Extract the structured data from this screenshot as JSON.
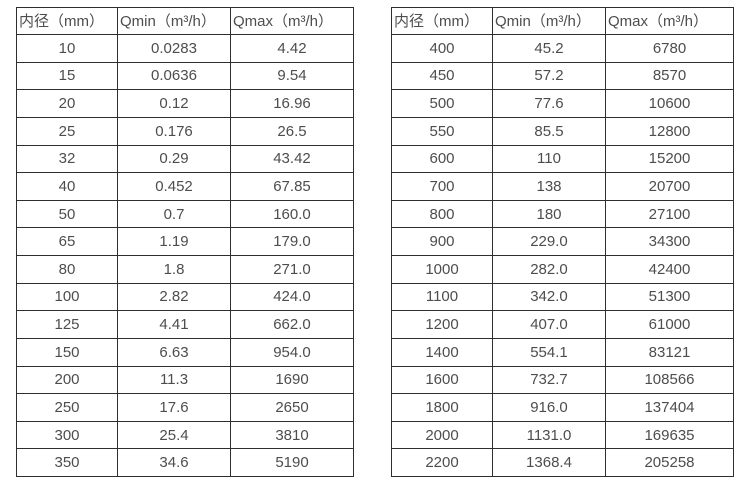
{
  "colors": {
    "background": "#ffffff",
    "border": "#2e2e2e",
    "text": "#4d4d4d"
  },
  "tables": [
    {
      "name": "flow-spec-table-small-diameters",
      "headers": [
        "内径（mm）",
        "Qmin（m³/h）",
        "Qmax（m³/h）"
      ],
      "rows": [
        [
          "10",
          "0.0283",
          "4.42"
        ],
        [
          "15",
          "0.0636",
          "9.54"
        ],
        [
          "20",
          "0.12",
          "16.96"
        ],
        [
          "25",
          "0.176",
          "26.5"
        ],
        [
          "32",
          "0.29",
          "43.42"
        ],
        [
          "40",
          "0.452",
          "67.85"
        ],
        [
          "50",
          "0.7",
          "160.0"
        ],
        [
          "65",
          "1.19",
          "179.0"
        ],
        [
          "80",
          "1.8",
          "271.0"
        ],
        [
          "100",
          "2.82",
          "424.0"
        ],
        [
          "125",
          "4.41",
          "662.0"
        ],
        [
          "150",
          "6.63",
          "954.0"
        ],
        [
          "200",
          "11.3",
          "1690"
        ],
        [
          "250",
          "17.6",
          "2650"
        ],
        [
          "300",
          "25.4",
          "3810"
        ],
        [
          "350",
          "34.6",
          "5190"
        ]
      ]
    },
    {
      "name": "flow-spec-table-large-diameters",
      "headers": [
        "内径（mm）",
        "Qmin（m³/h）",
        "Qmax（m³/h）"
      ],
      "rows": [
        [
          "400",
          "45.2",
          "6780"
        ],
        [
          "450",
          "57.2",
          "8570"
        ],
        [
          "500",
          "77.6",
          "10600"
        ],
        [
          "550",
          "85.5",
          "12800"
        ],
        [
          "600",
          "110",
          "15200"
        ],
        [
          "700",
          "138",
          "20700"
        ],
        [
          "800",
          "180",
          "27100"
        ],
        [
          "900",
          "229.0",
          "34300"
        ],
        [
          "1000",
          "282.0",
          "42400"
        ],
        [
          "1100",
          "342.0",
          "51300"
        ],
        [
          "1200",
          "407.0",
          "61000"
        ],
        [
          "1400",
          "554.1",
          "83121"
        ],
        [
          "1600",
          "732.7",
          "108566"
        ],
        [
          "1800",
          "916.0",
          "137404"
        ],
        [
          "2000",
          "1131.0",
          "169635"
        ],
        [
          "2200",
          "1368.4",
          "205258"
        ]
      ]
    }
  ]
}
